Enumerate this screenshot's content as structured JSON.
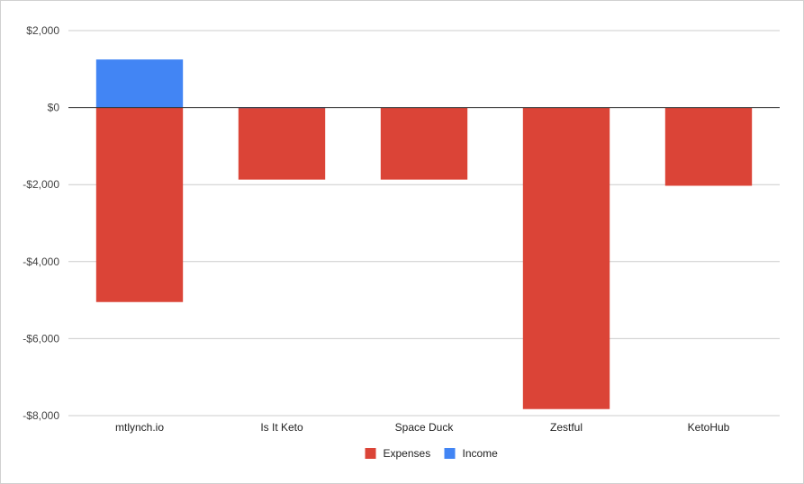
{
  "chart_data": {
    "type": "bar",
    "stacked": true,
    "categories": [
      "mtlynch.io",
      "Is It Keto",
      "Space Duck",
      "Zestful",
      "KetoHub"
    ],
    "series": [
      {
        "name": "Expenses",
        "color": "#db4437",
        "values": [
          -5050,
          -1870,
          -1870,
          -7830,
          -2030
        ]
      },
      {
        "name": "Income",
        "color": "#4285f4",
        "values": [
          1250,
          10,
          0,
          0,
          0
        ]
      }
    ],
    "yticks": [
      2000,
      0,
      -2000,
      -4000,
      -6000,
      -8000
    ],
    "ytick_labels": [
      "$2,000",
      "$0",
      "-$2,000",
      "-$4,000",
      "-$6,000",
      "-$8,000"
    ],
    "ylim": [
      -8000,
      2000
    ],
    "grid": true,
    "legend_position": "bottom",
    "title": "",
    "xlabel": "",
    "ylabel": ""
  }
}
